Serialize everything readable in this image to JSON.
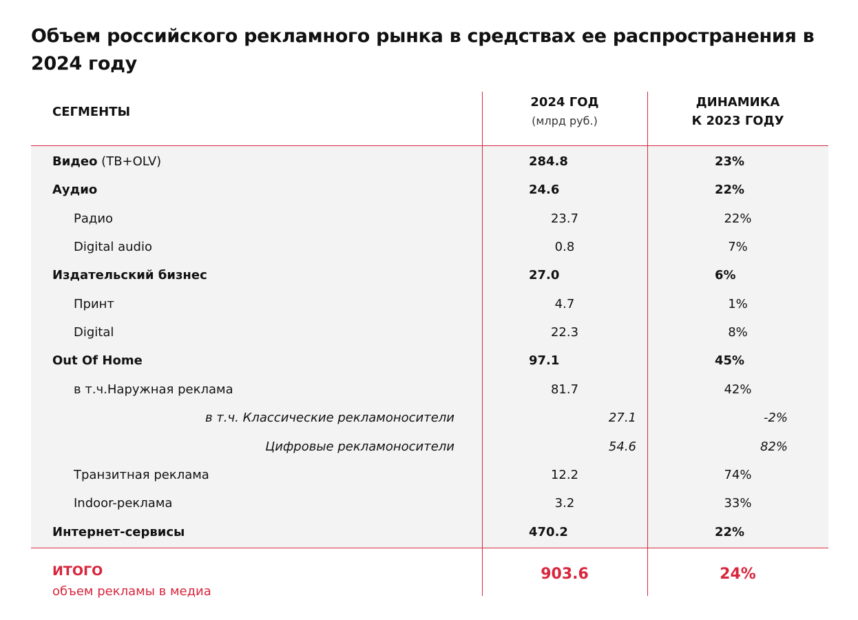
{
  "title": "Объем российского рекламного рынка в средствах ее распространения в 2024 году",
  "header": {
    "segments": "СЕГМЕНТЫ",
    "year_line1": "2024 ГОД",
    "year_line2": "(млрд руб.)",
    "dynamics_line1": "ДИНАМИКА",
    "dynamics_line2": "К 2023 ГОДУ"
  },
  "rows": [
    {
      "label": "Видео",
      "note": " (ТВ+OLV)",
      "value": "284.8",
      "dynamics": "23%",
      "level": "main"
    },
    {
      "label": "Аудио",
      "note": "",
      "value": "24.6",
      "dynamics": "22%",
      "level": "main"
    },
    {
      "label": "Радио",
      "note": "",
      "value": "23.7",
      "dynamics": "22%",
      "level": "sub"
    },
    {
      "label": "Digital audio",
      "note": "",
      "value": "0.8",
      "dynamics": "7%",
      "level": "sub"
    },
    {
      "label": "Издательский бизнес",
      "note": "",
      "value": "27.0",
      "dynamics": "6%",
      "level": "main"
    },
    {
      "label": "Принт",
      "note": "",
      "value": "4.7",
      "dynamics": "1%",
      "level": "sub"
    },
    {
      "label": "Digital",
      "note": "",
      "value": "22.3",
      "dynamics": "8%",
      "level": "sub"
    },
    {
      "label": "Out Of Home",
      "note": "",
      "value": "97.1",
      "dynamics": "45%",
      "level": "main"
    },
    {
      "label": "в т.ч.Наружная реклама",
      "note": "",
      "value": "81.7",
      "dynamics": "42%",
      "level": "sub"
    },
    {
      "label": "в т.ч. Классические рекламоносители",
      "note": "",
      "value": "27.1",
      "dynamics": "-2%",
      "level": "subsub"
    },
    {
      "label": "Цифровые рекламоносители",
      "note": "",
      "value": "54.6",
      "dynamics": "82%",
      "level": "subsub"
    },
    {
      "label": "Транзитная реклама",
      "note": "",
      "value": "12.2",
      "dynamics": "74%",
      "level": "sub"
    },
    {
      "label": "Indoor-реклама",
      "note": "",
      "value": "3.2",
      "dynamics": "33%",
      "level": "sub"
    },
    {
      "label": "Интернет-сервисы",
      "note": "",
      "value": "470.2",
      "dynamics": "22%",
      "level": "main"
    }
  ],
  "total": {
    "label": "ИТОГО",
    "sublabel": "объем рекламы в медиа",
    "value": "903.6",
    "dynamics": "24%"
  },
  "colors": {
    "accent": "#d7263d",
    "band": "#f3f3f3",
    "text": "#111111"
  }
}
